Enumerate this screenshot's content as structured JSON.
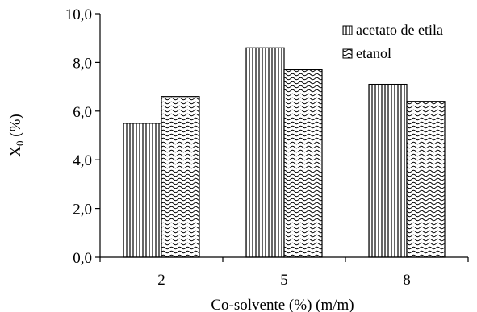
{
  "chart_data": {
    "type": "bar",
    "title": "",
    "xlabel": "Co-solvente (%) (m/m)",
    "ylabel_main": "X",
    "ylabel_sub": "0",
    "ylabel_tail": " (%)",
    "categories": [
      "2",
      "5",
      "8"
    ],
    "series": [
      {
        "name": "acetato de etila",
        "values": [
          5.5,
          8.6,
          7.1
        ],
        "pattern": "vertical-lines"
      },
      {
        "name": "etanol",
        "values": [
          6.6,
          7.7,
          6.4
        ],
        "pattern": "wavy-lines"
      }
    ],
    "ylim": [
      0,
      10
    ],
    "yticks": [
      "0,0",
      "2,0",
      "4,0",
      "6,0",
      "8,0",
      "10,0"
    ],
    "grid": false,
    "legend_position": "top-right",
    "colors": {
      "ink": "#000000",
      "background": "#ffffff"
    }
  }
}
